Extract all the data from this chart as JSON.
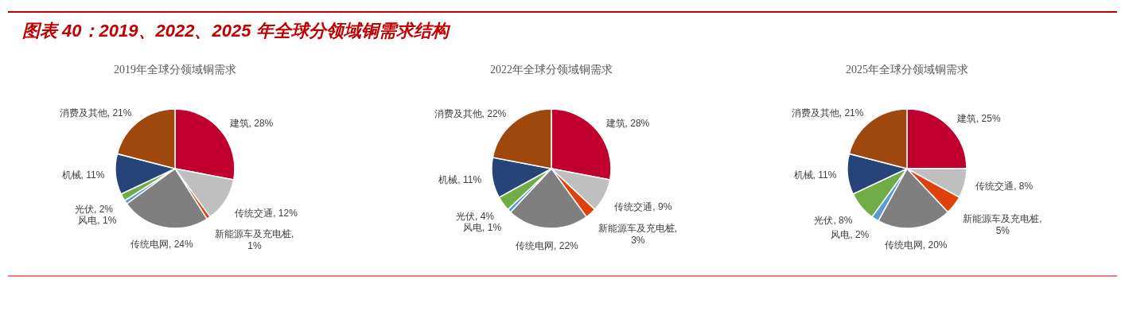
{
  "chart_data": [
    {
      "type": "pie",
      "title": "2019年全球分领域铜需求",
      "annotations": [
        "图表 40：2019、2022、2025 年全球分领域铜需求结构"
      ],
      "categories": [
        "建筑",
        "传统交通",
        "新能源车及充电桩",
        "传统电网",
        "风电",
        "光伏",
        "机械",
        "消费及其他"
      ],
      "values": [
        28,
        12,
        1,
        24,
        1,
        2,
        11,
        21
      ],
      "value_labels": [
        ", 28%",
        ", 12%",
        ", 1%",
        ", 24%",
        ", 1%",
        ", 2%",
        ", 11%",
        ", 21%"
      ],
      "colors": [
        "#c0002f",
        "#bfbfbf",
        "#e0400a",
        "#7f7f7f",
        "#5b9bd5",
        "#70ad47",
        "#264478",
        "#9e480e"
      ]
    },
    {
      "type": "pie",
      "title": "2022年全球分领域铜需求",
      "categories": [
        "建筑",
        "传统交通",
        "新能源车及充电桩",
        "传统电网",
        "风电",
        "光伏",
        "机械",
        "消费及其他"
      ],
      "values": [
        28,
        9,
        3,
        22,
        1,
        4,
        11,
        22
      ],
      "value_labels": [
        ", 28%",
        ", 9%",
        ", 3%",
        ", 22%",
        ", 1%",
        ", 4%",
        ", 11%",
        ", 22%"
      ],
      "colors": [
        "#c0002f",
        "#bfbfbf",
        "#e0400a",
        "#7f7f7f",
        "#5b9bd5",
        "#70ad47",
        "#264478",
        "#9e480e"
      ]
    },
    {
      "type": "pie",
      "title": "2025年全球分领域铜需求",
      "categories": [
        "建筑",
        "传统交通",
        "新能源车及充电桩",
        "传统电网",
        "风电",
        "光伏",
        "机械",
        "消费及其他"
      ],
      "values": [
        25,
        8,
        5,
        20,
        2,
        8,
        11,
        21
      ],
      "value_labels": [
        ", 25%",
        ", 8%",
        ", 5%",
        ", 20%",
        ", 2%",
        ", 8%",
        ", 11%",
        ", 21%"
      ],
      "colors": [
        "#c0002f",
        "#bfbfbf",
        "#e0400a",
        "#7f7f7f",
        "#5b9bd5",
        "#70ad47",
        "#264478",
        "#9e480e"
      ]
    }
  ]
}
